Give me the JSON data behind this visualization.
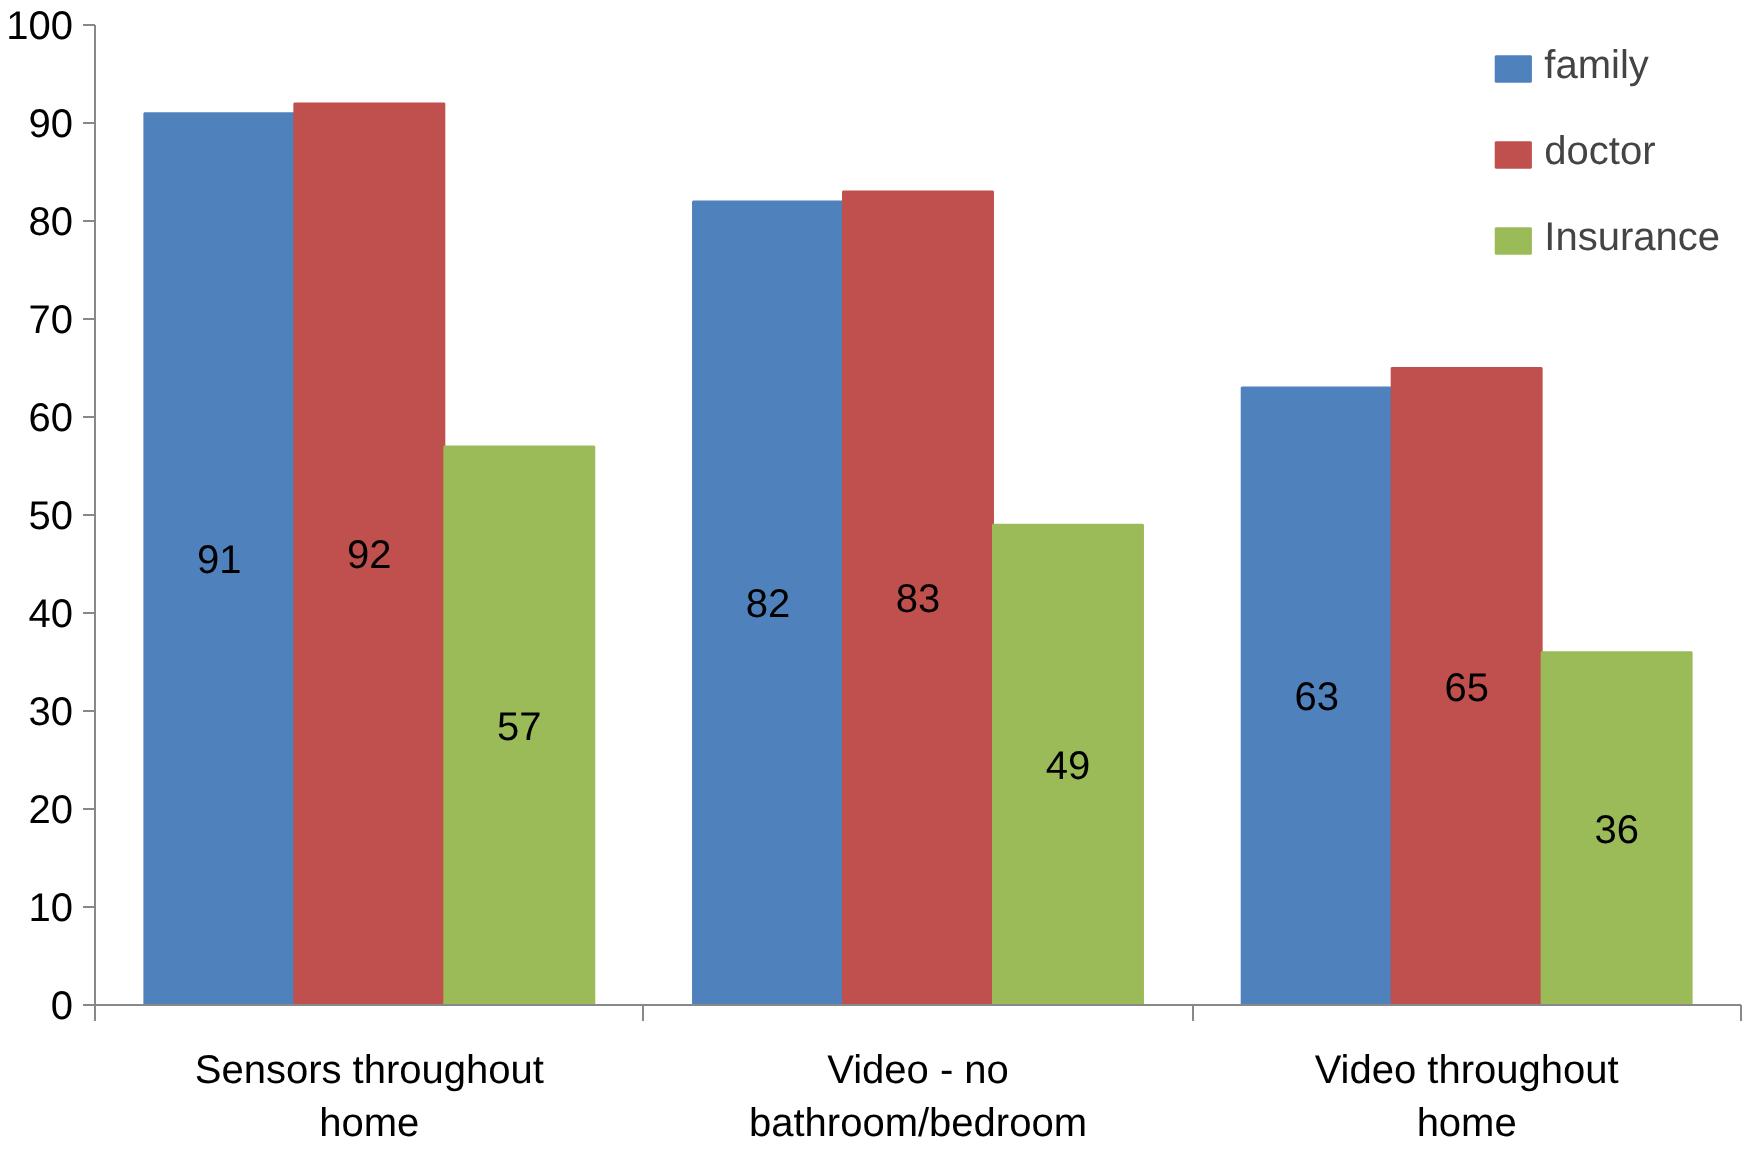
{
  "chart_data": {
    "type": "bar",
    "categories": [
      "Sensors throughout home",
      "Video - no bathroom/bedroom",
      "Video throughout home"
    ],
    "series": [
      {
        "name": "family",
        "color": "#4f81bd",
        "values": [
          91,
          82,
          63
        ]
      },
      {
        "name": "doctor",
        "color": "#c0504d",
        "values": [
          92,
          83,
          65
        ]
      },
      {
        "name": "Insurance",
        "color": "#9bbb59",
        "values": [
          57,
          49,
          36
        ]
      }
    ],
    "ylim": [
      0,
      100
    ],
    "yticks": [
      0,
      10,
      20,
      30,
      40,
      50,
      60,
      70,
      80,
      90,
      100
    ],
    "grid": false,
    "legend": "top right",
    "data_labels": true
  }
}
